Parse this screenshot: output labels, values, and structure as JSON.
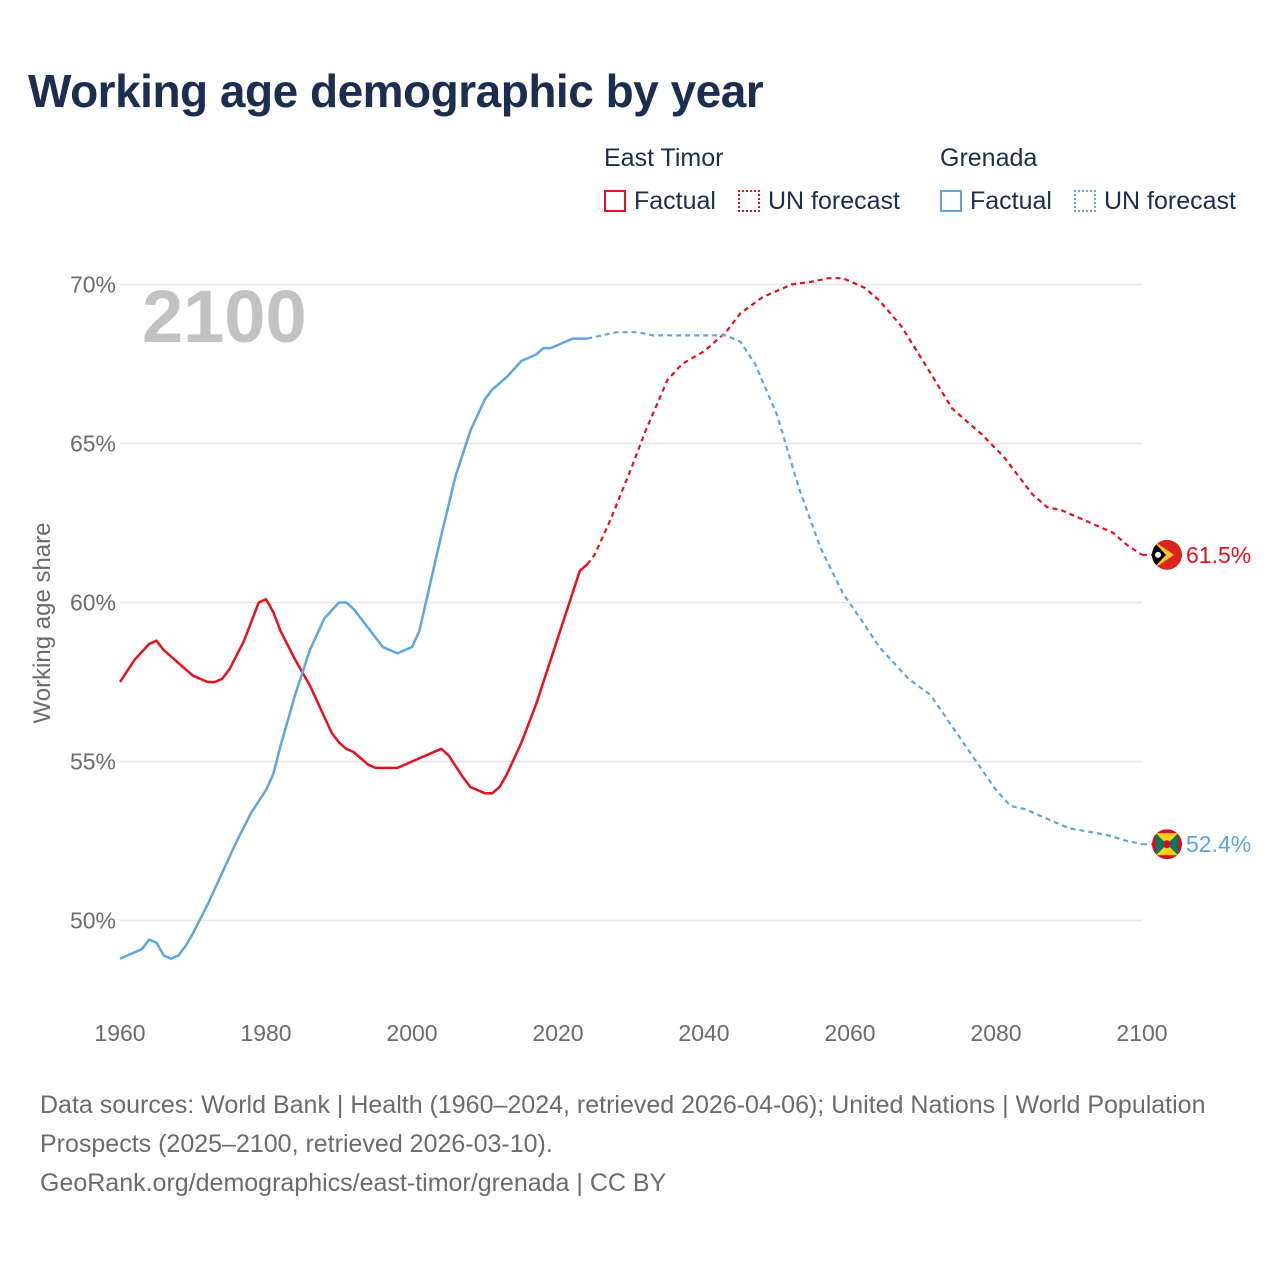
{
  "colors": {
    "east_timor": "#e8101c",
    "grenada": "#5da6e2",
    "title": "#1b2e4f",
    "axis_text": "#6b6b6b",
    "grid": "#e6e6e6",
    "year_watermark": "#c2c2c2"
  },
  "header": {
    "title": "Working age demographic by year"
  },
  "legend": {
    "groups": [
      {
        "name": "East Timor",
        "factual_label": "Factual",
        "forecast_label": "UN forecast"
      },
      {
        "name": "Grenada",
        "factual_label": "Factual",
        "forecast_label": "UN forecast"
      }
    ]
  },
  "chart_data": {
    "type": "line",
    "title": "Working age demographic by year",
    "ylabel": "Working age share",
    "xlabel": "",
    "watermark_year": "2100",
    "x_range": [
      1960,
      2100
    ],
    "y_range": [
      47.5,
      70.3
    ],
    "x_ticks": [
      1960,
      1980,
      2000,
      2020,
      2040,
      2060,
      2080,
      2100
    ],
    "y_ticks": [
      50,
      55,
      60,
      65,
      70
    ],
    "y_tick_labels": [
      "50%",
      "55%",
      "60%",
      "65%",
      "70%"
    ],
    "forecast_start_year": 2025,
    "series": [
      {
        "name": "East Timor",
        "end_label": "61.5%",
        "flag": "east-timor-flag-icon",
        "factual": [
          [
            1960,
            57.5
          ],
          [
            1962,
            58.2
          ],
          [
            1964,
            58.7
          ],
          [
            1965,
            58.8
          ],
          [
            1966,
            58.5
          ],
          [
            1968,
            58.1
          ],
          [
            1970,
            57.7
          ],
          [
            1972,
            57.5
          ],
          [
            1973,
            57.5
          ],
          [
            1974,
            57.6
          ],
          [
            1975,
            57.9
          ],
          [
            1977,
            58.8
          ],
          [
            1979,
            60.0
          ],
          [
            1980,
            60.1
          ],
          [
            1981,
            59.7
          ],
          [
            1982,
            59.1
          ],
          [
            1984,
            58.2
          ],
          [
            1986,
            57.4
          ],
          [
            1988,
            56.4
          ],
          [
            1989,
            55.9
          ],
          [
            1990,
            55.6
          ],
          [
            1991,
            55.4
          ],
          [
            1992,
            55.3
          ],
          [
            1994,
            54.9
          ],
          [
            1995,
            54.8
          ],
          [
            1998,
            54.8
          ],
          [
            2000,
            55.0
          ],
          [
            2004,
            55.4
          ],
          [
            2005,
            55.2
          ],
          [
            2007,
            54.5
          ],
          [
            2008,
            54.2
          ],
          [
            2010,
            54.0
          ],
          [
            2011,
            54.0
          ],
          [
            2012,
            54.2
          ],
          [
            2013,
            54.6
          ],
          [
            2015,
            55.6
          ],
          [
            2017,
            56.8
          ],
          [
            2019,
            58.2
          ],
          [
            2021,
            59.6
          ],
          [
            2023,
            61.0
          ],
          [
            2024,
            61.2
          ]
        ],
        "forecast": [
          [
            2024,
            61.2
          ],
          [
            2025,
            61.5
          ],
          [
            2027,
            62.5
          ],
          [
            2030,
            64.2
          ],
          [
            2032,
            65.4
          ],
          [
            2035,
            67.0
          ],
          [
            2037,
            67.5
          ],
          [
            2040,
            67.9
          ],
          [
            2043,
            68.5
          ],
          [
            2045,
            69.1
          ],
          [
            2048,
            69.6
          ],
          [
            2052,
            70.0
          ],
          [
            2055,
            70.1
          ],
          [
            2057,
            70.2
          ],
          [
            2059,
            70.2
          ],
          [
            2062,
            69.9
          ],
          [
            2064,
            69.5
          ],
          [
            2067,
            68.7
          ],
          [
            2070,
            67.6
          ],
          [
            2074,
            66.1
          ],
          [
            2078,
            65.3
          ],
          [
            2081,
            64.6
          ],
          [
            2085,
            63.4
          ],
          [
            2087,
            63.0
          ],
          [
            2089,
            62.9
          ],
          [
            2092,
            62.6
          ],
          [
            2096,
            62.2
          ],
          [
            2098,
            61.8
          ],
          [
            2100,
            61.5
          ]
        ]
      },
      {
        "name": "Grenada",
        "end_label": "52.4%",
        "flag": "grenada-flag-icon",
        "factual": [
          [
            1960,
            48.8
          ],
          [
            1963,
            49.1
          ],
          [
            1964,
            49.4
          ],
          [
            1965,
            49.3
          ],
          [
            1966,
            48.9
          ],
          [
            1967,
            48.8
          ],
          [
            1968,
            48.9
          ],
          [
            1969,
            49.2
          ],
          [
            1970,
            49.6
          ],
          [
            1972,
            50.5
          ],
          [
            1974,
            51.5
          ],
          [
            1976,
            52.5
          ],
          [
            1978,
            53.4
          ],
          [
            1980,
            54.1
          ],
          [
            1981,
            54.6
          ],
          [
            1982,
            55.5
          ],
          [
            1984,
            57.1
          ],
          [
            1986,
            58.5
          ],
          [
            1988,
            59.5
          ],
          [
            1990,
            60.0
          ],
          [
            1991,
            60.0
          ],
          [
            1992,
            59.8
          ],
          [
            1994,
            59.2
          ],
          [
            1996,
            58.6
          ],
          [
            1998,
            58.4
          ],
          [
            2000,
            58.6
          ],
          [
            2001,
            59.1
          ],
          [
            2002,
            60.1
          ],
          [
            2004,
            62.1
          ],
          [
            2006,
            64.0
          ],
          [
            2008,
            65.4
          ],
          [
            2010,
            66.4
          ],
          [
            2011,
            66.7
          ],
          [
            2013,
            67.1
          ],
          [
            2015,
            67.6
          ],
          [
            2017,
            67.8
          ],
          [
            2018,
            68.0
          ],
          [
            2019,
            68.0
          ],
          [
            2022,
            68.3
          ],
          [
            2024,
            68.3
          ]
        ],
        "forecast": [
          [
            2024,
            68.3
          ],
          [
            2026,
            68.4
          ],
          [
            2028,
            68.5
          ],
          [
            2031,
            68.5
          ],
          [
            2033,
            68.4
          ],
          [
            2036,
            68.4
          ],
          [
            2040,
            68.4
          ],
          [
            2043,
            68.4
          ],
          [
            2045,
            68.2
          ],
          [
            2047,
            67.5
          ],
          [
            2050,
            65.9
          ],
          [
            2053,
            63.6
          ],
          [
            2056,
            61.7
          ],
          [
            2059,
            60.3
          ],
          [
            2062,
            59.3
          ],
          [
            2064,
            58.6
          ],
          [
            2066,
            58.1
          ],
          [
            2068,
            57.6
          ],
          [
            2071,
            57.1
          ],
          [
            2074,
            56.1
          ],
          [
            2077,
            55.1
          ],
          [
            2080,
            54.1
          ],
          [
            2082,
            53.6
          ],
          [
            2084,
            53.5
          ],
          [
            2086,
            53.3
          ],
          [
            2090,
            52.9
          ],
          [
            2095,
            52.7
          ],
          [
            2098,
            52.5
          ],
          [
            2100,
            52.4
          ]
        ]
      }
    ]
  },
  "footer": {
    "sources": "Data sources: World Bank | Health (1960–2024, retrieved 2026-04-06); United Nations | World Population Prospects (2025–2100, retrieved 2026-03-10).",
    "attribution": "GeoRank.org/demographics/east-timor/grenada | CC BY"
  }
}
